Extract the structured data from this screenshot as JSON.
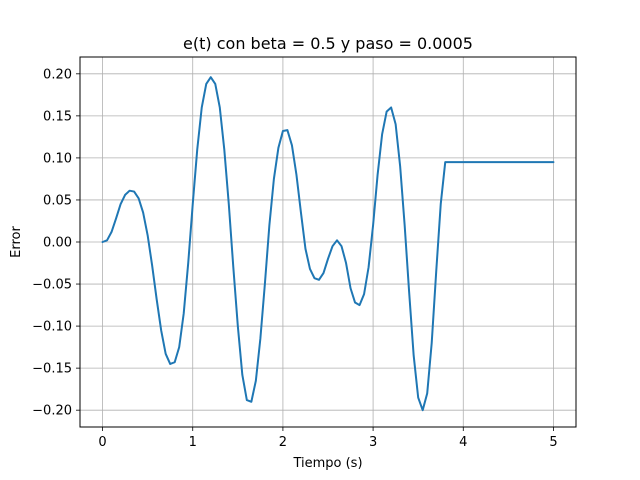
{
  "chart_data": {
    "type": "line",
    "title": "e(t) con beta = 0.5 y paso = 0.0005",
    "xlabel": "Tiempo (s)",
    "ylabel": "Error",
    "xlim": [
      -0.25,
      5.25
    ],
    "ylim": [
      -0.22,
      0.22
    ],
    "xticks": [
      0,
      1,
      2,
      3,
      4,
      5
    ],
    "xtick_labels": [
      "0",
      "1",
      "2",
      "3",
      "4",
      "5"
    ],
    "yticks": [
      -0.2,
      -0.15,
      -0.1,
      -0.05,
      0.0,
      0.05,
      0.1,
      0.15,
      0.2
    ],
    "ytick_labels": [
      "−0.20",
      "−0.15",
      "−0.10",
      "−0.05",
      "0.00",
      "0.05",
      "0.10",
      "0.15",
      "0.20"
    ],
    "grid": true,
    "legend": false,
    "series": [
      {
        "color": "#1f77b4",
        "x": [
          0,
          0.05,
          0.1,
          0.15,
          0.2,
          0.25,
          0.3,
          0.35,
          0.4,
          0.45,
          0.5,
          0.55,
          0.6,
          0.65,
          0.7,
          0.75,
          0.8,
          0.85,
          0.9,
          0.95,
          1.0,
          1.05,
          1.1,
          1.15,
          1.2,
          1.25,
          1.3,
          1.35,
          1.4,
          1.45,
          1.5,
          1.55,
          1.6,
          1.65,
          1.7,
          1.75,
          1.8,
          1.85,
          1.9,
          1.95,
          2.0,
          2.05,
          2.1,
          2.15,
          2.2,
          2.25,
          2.3,
          2.35,
          2.4,
          2.45,
          2.5,
          2.55,
          2.6,
          2.65,
          2.7,
          2.75,
          2.8,
          2.85,
          2.9,
          2.95,
          3.0,
          3.05,
          3.1,
          3.15,
          3.2,
          3.25,
          3.3,
          3.35,
          3.4,
          3.45,
          3.5,
          3.55,
          3.6,
          3.65,
          3.7,
          3.75,
          3.8,
          3.85,
          3.9,
          3.95,
          4.0,
          4.05,
          4.1,
          4.15,
          4.2,
          4.25,
          4.3,
          4.35,
          4.4,
          4.45,
          4.5,
          4.55,
          4.6,
          4.65,
          4.7,
          4.75,
          4.8,
          4.85,
          4.9,
          4.95,
          5.0
        ],
        "y": [
          0.0,
          0.002,
          0.012,
          0.028,
          0.045,
          0.056,
          0.061,
          0.06,
          0.052,
          0.035,
          0.008,
          -0.028,
          -0.068,
          -0.105,
          -0.133,
          -0.145,
          -0.143,
          -0.125,
          -0.085,
          -0.025,
          0.045,
          0.11,
          0.16,
          0.188,
          0.196,
          0.188,
          0.16,
          0.11,
          0.045,
          -0.03,
          -0.1,
          -0.158,
          -0.188,
          -0.19,
          -0.165,
          -0.115,
          -0.05,
          0.02,
          0.075,
          0.112,
          0.132,
          0.133,
          0.115,
          0.08,
          0.035,
          -0.008,
          -0.032,
          -0.043,
          -0.045,
          -0.037,
          -0.02,
          -0.005,
          0.002,
          -0.005,
          -0.025,
          -0.055,
          -0.072,
          -0.075,
          -0.062,
          -0.03,
          0.02,
          0.08,
          0.128,
          0.155,
          0.16,
          0.14,
          0.09,
          0.02,
          -0.06,
          -0.135,
          -0.185,
          -0.2,
          -0.18,
          -0.12,
          -0.035,
          0.045,
          0.095,
          0.095,
          0.095,
          0.095,
          0.095,
          0.095,
          0.095,
          0.095,
          0.095,
          0.095,
          0.095,
          0.095,
          0.095,
          0.095,
          0.095,
          0.095,
          0.095,
          0.095,
          0.095,
          0.095,
          0.095,
          0.095,
          0.095,
          0.095,
          0.095
        ]
      }
    ]
  }
}
